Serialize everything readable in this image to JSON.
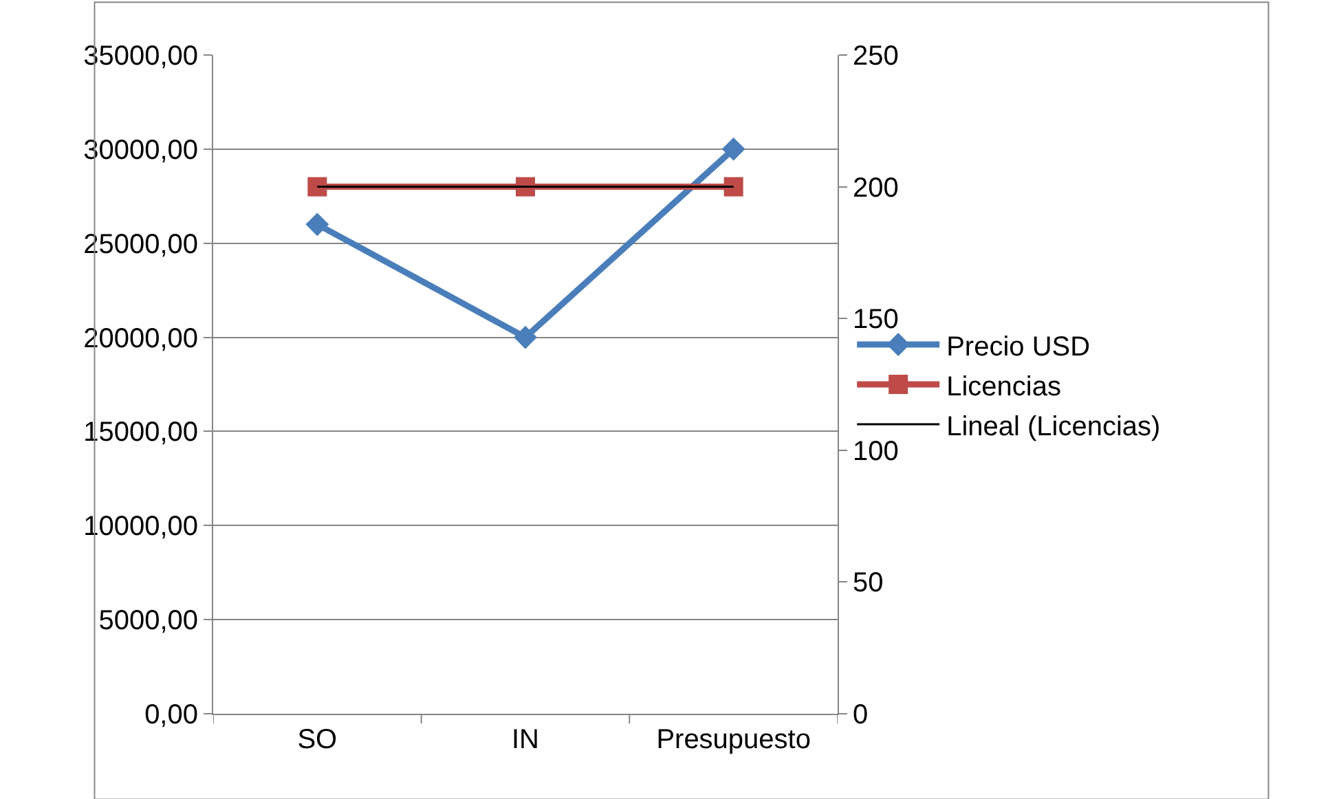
{
  "chart_data": {
    "type": "line",
    "categories": [
      "SO",
      "IN",
      "Presupuesto"
    ],
    "series": [
      {
        "name": "Precio USD",
        "color": "#4a7ebb",
        "values": [
          26000,
          20000,
          30000
        ],
        "marker": "diamond"
      },
      {
        "name": "Licencias",
        "color": "#be4b48",
        "values": [
          200,
          200,
          200
        ],
        "marker": "square",
        "axis": "y2"
      },
      {
        "name": "Lineal (Licencias)",
        "color": "#000000",
        "values": [
          200,
          200,
          200
        ],
        "marker": "none",
        "axis": "y2"
      }
    ],
    "ylim": [
      0,
      35000
    ],
    "yticks": [
      {
        "value": 0,
        "label": "0,00"
      },
      {
        "value": 5000,
        "label": "5000,00"
      },
      {
        "value": 10000,
        "label": "10000,00"
      },
      {
        "value": 15000,
        "label": "15000,00"
      },
      {
        "value": 20000,
        "label": "20000,00"
      },
      {
        "value": 25000,
        "label": "25000,00"
      },
      {
        "value": 30000,
        "label": "30000,00"
      },
      {
        "value": 35000,
        "label": "35000,00"
      }
    ],
    "y2lim": [
      0,
      250
    ],
    "y2ticks": [
      0,
      50,
      100,
      150,
      200,
      250
    ],
    "grid": "y",
    "legend": "right"
  }
}
